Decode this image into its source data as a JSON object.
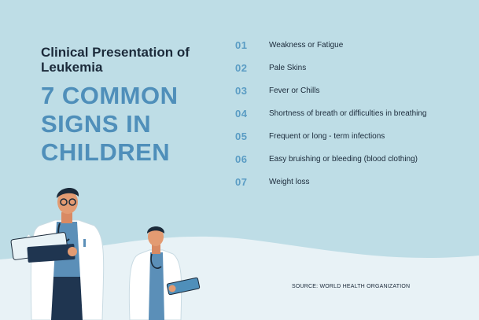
{
  "colors": {
    "background": "#bedde6",
    "wave": "#e8f2f6",
    "headline": "#4f8fba",
    "number": "#5a9cc4",
    "text": "#1b2a3a"
  },
  "header": {
    "subtitle": "Clinical Presentation of Leukemia",
    "headline_lines": [
      "7 COMMON",
      "SIGNS IN",
      "CHILDREN"
    ]
  },
  "signs": [
    {
      "number": "01",
      "label": "Weakness or Fatigue"
    },
    {
      "number": "02",
      "label": "Pale Skins"
    },
    {
      "number": "03",
      "label": "Fever or Chills"
    },
    {
      "number": "04",
      "label": "Shortness of breath or difficulties in breathing"
    },
    {
      "number": "05",
      "label": "Frequent or long - term infections"
    },
    {
      "number": "06",
      "label": "Easy bruishing or bleeding (blood clothing)"
    },
    {
      "number": "07",
      "label": "Weight loss"
    }
  ],
  "footer": {
    "source": "SOURCE: WORLD HEALTH ORGANIZATION"
  },
  "illustrations": {
    "left": "doctor-with-clipboard-illustration",
    "right": "doctor-with-tablet-illustration"
  }
}
